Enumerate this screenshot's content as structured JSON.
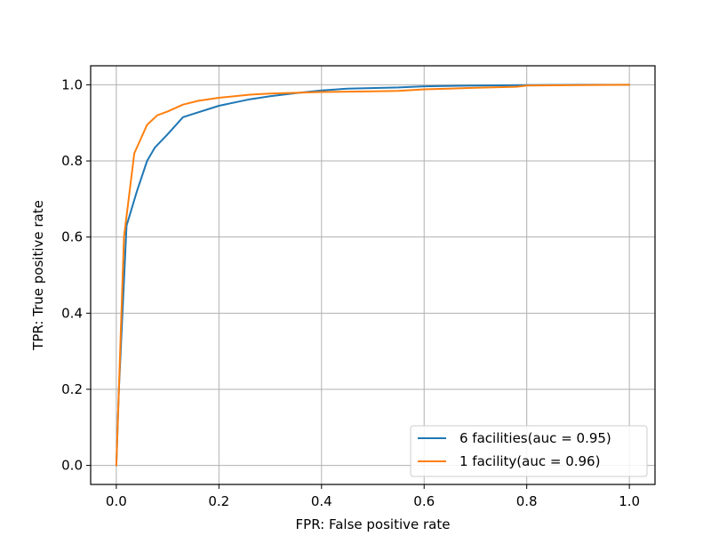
{
  "chart_data": {
    "type": "line",
    "title": "",
    "xlabel": "FPR: False positive rate",
    "ylabel": "TPR: True positive rate",
    "xlim": [
      -0.05,
      1.05
    ],
    "ylim": [
      -0.05,
      1.05
    ],
    "xticks": [
      "0.0",
      "0.2",
      "0.4",
      "0.6",
      "0.8",
      "1.0"
    ],
    "yticks": [
      "0.0",
      "0.2",
      "0.4",
      "0.6",
      "0.8",
      "1.0"
    ],
    "grid": true,
    "legend_position": "lower-right",
    "series": [
      {
        "name": "6 facilities(auc = 0.95)",
        "color": "#1f77b4",
        "x": [
          0.0,
          0.005,
          0.02,
          0.04,
          0.06,
          0.075,
          0.1,
          0.13,
          0.2,
          0.26,
          0.3,
          0.35,
          0.4,
          0.45,
          0.55,
          0.6,
          0.7,
          0.8,
          0.9,
          1.0
        ],
        "y": [
          0.0,
          0.2,
          0.63,
          0.72,
          0.8,
          0.835,
          0.87,
          0.915,
          0.945,
          0.962,
          0.97,
          0.978,
          0.985,
          0.99,
          0.993,
          0.996,
          0.998,
          0.999,
          1.0,
          1.0
        ]
      },
      {
        "name": "1 facility(auc = 0.96)",
        "color": "#ff7f0e",
        "x": [
          0.0,
          0.015,
          0.035,
          0.06,
          0.08,
          0.1,
          0.13,
          0.16,
          0.2,
          0.26,
          0.3,
          0.35,
          0.4,
          0.5,
          0.55,
          0.6,
          0.7,
          0.78,
          0.8,
          0.9,
          1.0
        ],
        "y": [
          0.0,
          0.6,
          0.82,
          0.895,
          0.92,
          0.93,
          0.948,
          0.958,
          0.966,
          0.974,
          0.977,
          0.979,
          0.981,
          0.983,
          0.984,
          0.988,
          0.992,
          0.995,
          0.998,
          0.999,
          1.0
        ]
      }
    ]
  }
}
